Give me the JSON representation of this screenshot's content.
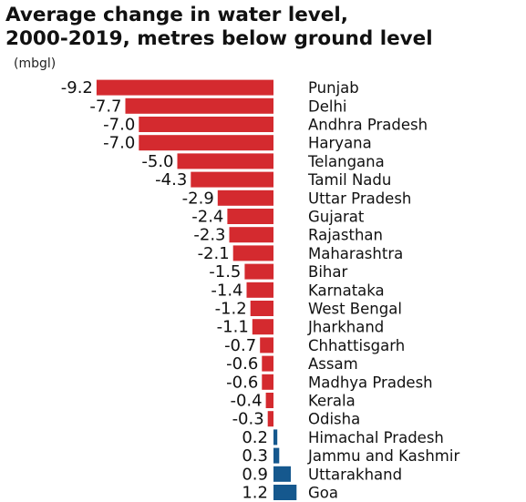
{
  "chart_data": {
    "type": "bar",
    "orientation": "horizontal",
    "title": [
      "Average change in water level,",
      "2000-2019, metres below ground level"
    ],
    "unit_label": "(mbgl)",
    "categories": [
      "Punjab",
      "Delhi",
      "Andhra Pradesh",
      "Haryana",
      "Telangana",
      "Tamil Nadu",
      "Uttar Pradesh",
      "Gujarat",
      "Rajasthan",
      "Maharashtra",
      "Bihar",
      "Karnataka",
      "West Bengal",
      "Jharkhand",
      "Chhattisgarh",
      "Assam",
      "Madhya Pradesh",
      "Kerala",
      "Odisha",
      "Himachal Pradesh",
      "Jammu and Kashmir",
      "Uttarakhand",
      "Goa"
    ],
    "values": [
      -9.2,
      -7.7,
      -7.0,
      -7.0,
      -5.0,
      -4.3,
      -2.9,
      -2.4,
      -2.3,
      -2.1,
      -1.5,
      -1.4,
      -1.2,
      -1.1,
      -0.7,
      -0.6,
      -0.6,
      -0.4,
      -0.3,
      0.2,
      0.3,
      0.9,
      1.2
    ],
    "value_labels": [
      "-9.2",
      "-7.7",
      "-7.0",
      "-7.0",
      "-5.0",
      "-4.3",
      "-2.9",
      "-2.4",
      "-2.3",
      "-2.1",
      "-1.5",
      "-1.4",
      "-1.2",
      "-1.1",
      "-0.7",
      "-0.6",
      "-0.6",
      "-0.4",
      "-0.3",
      "0.2",
      "0.3",
      "0.9",
      "1.2"
    ],
    "colors": {
      "negative": "#d42a2f",
      "positive": "#15588e"
    },
    "grid": false,
    "legend": "none"
  }
}
